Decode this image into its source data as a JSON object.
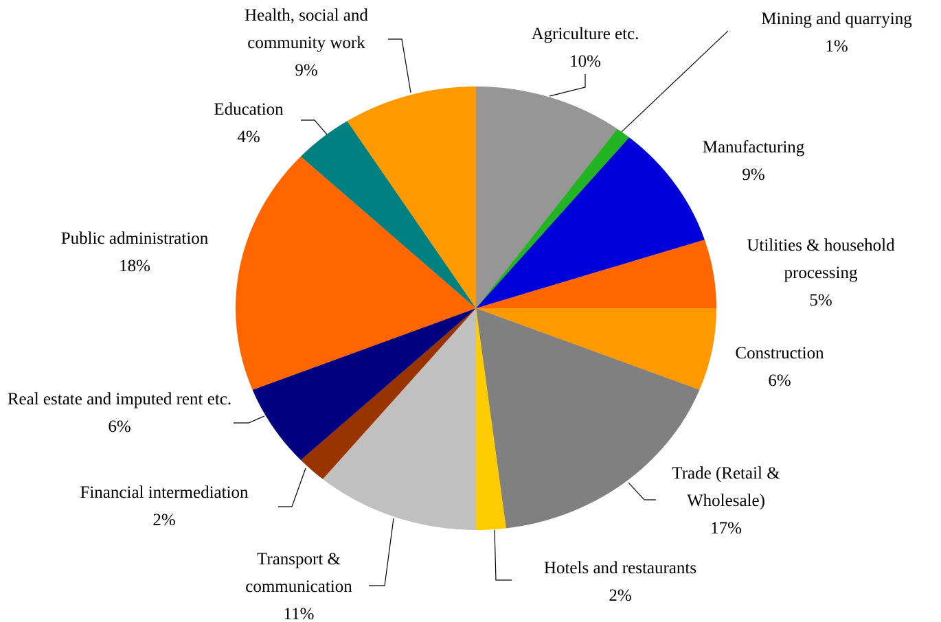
{
  "chart_data": {
    "type": "pie",
    "categories": [
      "Agriculture etc.",
      "Mining and quarrying",
      "Manufacturing",
      "Utilities & household processing",
      "Construction",
      "Trade (Retail & Wholesale)",
      "Hotels and restaurants",
      "Transport & communication",
      "Financial intermediation",
      "Real estate and imputed rent etc.",
      "Public administration",
      "Education",
      "Health, social and community work"
    ],
    "values": [
      10,
      1,
      9,
      5,
      6,
      17,
      2,
      11,
      2,
      6,
      18,
      4,
      9
    ],
    "value_labels": [
      "10%",
      "1%",
      "9%",
      "5%",
      "6%",
      "17%",
      "2%",
      "11%",
      "2%",
      "6%",
      "18%",
      "4%",
      "9%"
    ],
    "colors": [
      "#969696",
      "#22b422",
      "#0000d8",
      "#ff6600",
      "#ff9900",
      "#808080",
      "#ffcc00",
      "#c0c0c0",
      "#993300",
      "#000080",
      "#ff6600",
      "#008080",
      "#ff9900"
    ]
  }
}
